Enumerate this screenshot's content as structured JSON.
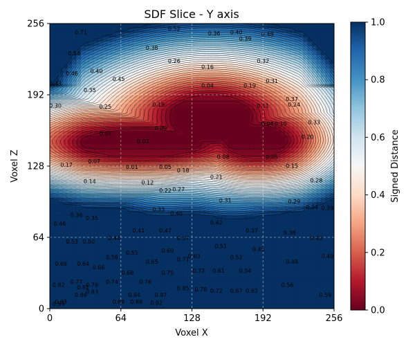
{
  "chart_data": {
    "type": "heatmap",
    "title": "SDF Slice - Y axis",
    "xlabel": "Voxel X",
    "ylabel": "Voxel Z",
    "xlim": [
      0,
      256
    ],
    "ylim": [
      0,
      256
    ],
    "xticks": [
      "0",
      "64",
      "128",
      "192",
      "256"
    ],
    "yticks": [
      "0",
      "64",
      "128",
      "192",
      "256"
    ],
    "xtick_values": [
      0,
      64,
      128,
      192,
      256
    ],
    "ytick_values": [
      0,
      64,
      128,
      192,
      256
    ],
    "colormap": "RdBu",
    "colors": {
      "low": "#67001f",
      "mid": "#f7f7f7",
      "high": "#053061"
    },
    "colorbar": {
      "label": "Signed Distance",
      "range": [
        0.0,
        1.0
      ],
      "ticks": [
        "0.0",
        "0.2",
        "0.4",
        "0.6",
        "0.8",
        "1.0"
      ],
      "tick_values": [
        0.0,
        0.2,
        0.4,
        0.6,
        0.8,
        1.0
      ]
    },
    "grid": true,
    "contour_labels": [
      {
        "x": 28,
        "z": 248,
        "v": "0.71"
      },
      {
        "x": 148,
        "z": 247,
        "v": "0.36"
      },
      {
        "x": 112,
        "z": 251,
        "v": "0.52"
      },
      {
        "x": 168,
        "z": 248,
        "v": "0.40"
      },
      {
        "x": 176,
        "z": 242,
        "v": "0.39"
      },
      {
        "x": 196,
        "z": 246,
        "v": "0.48"
      },
      {
        "x": 22,
        "z": 229,
        "v": "0.58"
      },
      {
        "x": 92,
        "z": 234,
        "v": "0.38"
      },
      {
        "x": 112,
        "z": 222,
        "v": "0.26"
      },
      {
        "x": 142,
        "z": 217,
        "v": "0.16"
      },
      {
        "x": 192,
        "z": 222,
        "v": "0.32"
      },
      {
        "x": 20,
        "z": 211,
        "v": "0.46"
      },
      {
        "x": 42,
        "z": 213,
        "v": "0.40"
      },
      {
        "x": 62,
        "z": 206,
        "v": "0.45"
      },
      {
        "x": 5,
        "z": 202,
        "v": "0.43"
      },
      {
        "x": 36,
        "z": 196,
        "v": "0.35"
      },
      {
        "x": 142,
        "z": 200,
        "v": "0.04"
      },
      {
        "x": 180,
        "z": 200,
        "v": "0.19"
      },
      {
        "x": 200,
        "z": 204,
        "v": "0.31"
      },
      {
        "x": 218,
        "z": 188,
        "v": "0.37"
      },
      {
        "x": 50,
        "z": 181,
        "v": "0.25"
      },
      {
        "x": 98,
        "z": 183,
        "v": "0.19"
      },
      {
        "x": 192,
        "z": 182,
        "v": "0.11"
      },
      {
        "x": 220,
        "z": 183,
        "v": "0.24"
      },
      {
        "x": 5,
        "z": 182,
        "v": "0.30"
      },
      {
        "x": 100,
        "z": 162,
        "v": "0.09"
      },
      {
        "x": 196,
        "z": 166,
        "v": "0.04"
      },
      {
        "x": 208,
        "z": 166,
        "v": "0.10"
      },
      {
        "x": 238,
        "z": 167,
        "v": "0.33"
      },
      {
        "x": 50,
        "z": 157,
        "v": "0.07"
      },
      {
        "x": 84,
        "z": 150,
        "v": "0.02"
      },
      {
        "x": 232,
        "z": 154,
        "v": "0.20"
      },
      {
        "x": 156,
        "z": 136,
        "v": "0.08"
      },
      {
        "x": 200,
        "z": 136,
        "v": "0.05"
      },
      {
        "x": 40,
        "z": 132,
        "v": "0.07"
      },
      {
        "x": 74,
        "z": 127,
        "v": "0.01"
      },
      {
        "x": 104,
        "z": 127,
        "v": "0.05"
      },
      {
        "x": 120,
        "z": 124,
        "v": "0.18"
      },
      {
        "x": 218,
        "z": 128,
        "v": "0.15"
      },
      {
        "x": 15,
        "z": 129,
        "v": "0.17"
      },
      {
        "x": 36,
        "z": 114,
        "v": "0.14"
      },
      {
        "x": 88,
        "z": 113,
        "v": "0.12"
      },
      {
        "x": 150,
        "z": 118,
        "v": "0.21"
      },
      {
        "x": 104,
        "z": 106,
        "v": "0.22"
      },
      {
        "x": 116,
        "z": 107,
        "v": "0.27"
      },
      {
        "x": 240,
        "z": 115,
        "v": "0.28"
      },
      {
        "x": 158,
        "z": 97,
        "v": "0.31"
      },
      {
        "x": 220,
        "z": 96,
        "v": "0.29"
      },
      {
        "x": 236,
        "z": 91,
        "v": "0.34"
      },
      {
        "x": 98,
        "z": 89,
        "v": "0.33"
      },
      {
        "x": 114,
        "z": 85,
        "v": "0.40"
      },
      {
        "x": 250,
        "z": 90,
        "v": "0.39"
      },
      {
        "x": 24,
        "z": 84,
        "v": "0.36"
      },
      {
        "x": 38,
        "z": 81,
        "v": "0.35"
      },
      {
        "x": 9,
        "z": 76,
        "v": "0.46"
      },
      {
        "x": 150,
        "z": 77,
        "v": "0.42"
      },
      {
        "x": 80,
        "z": 70,
        "v": "0.41"
      },
      {
        "x": 104,
        "z": 70,
        "v": "0.47"
      },
      {
        "x": 182,
        "z": 70,
        "v": "0.37"
      },
      {
        "x": 216,
        "z": 68,
        "v": "0.38"
      },
      {
        "x": 240,
        "z": 63,
        "v": "0.43"
      },
      {
        "x": 58,
        "z": 63,
        "v": "0.44"
      },
      {
        "x": 120,
        "z": 63,
        "v": "0.57"
      },
      {
        "x": 20,
        "z": 60,
        "v": "0.53"
      },
      {
        "x": 35,
        "z": 60,
        "v": "0.50"
      },
      {
        "x": 154,
        "z": 56,
        "v": "0.51"
      },
      {
        "x": 188,
        "z": 53,
        "v": "0.45"
      },
      {
        "x": 106,
        "z": 52,
        "v": "0.60"
      },
      {
        "x": 74,
        "z": 50,
        "v": "0.55"
      },
      {
        "x": 56,
        "z": 46,
        "v": "0.58"
      },
      {
        "x": 168,
        "z": 46,
        "v": "0.52"
      },
      {
        "x": 250,
        "z": 47,
        "v": "0.49"
      },
      {
        "x": 130,
        "z": 47,
        "v": "0.63"
      },
      {
        "x": 120,
        "z": 44,
        "v": "0.71"
      },
      {
        "x": 92,
        "z": 42,
        "v": "0.65"
      },
      {
        "x": 218,
        "z": 42,
        "v": "0.48"
      },
      {
        "x": 10,
        "z": 40,
        "v": "0.69"
      },
      {
        "x": 30,
        "z": 40,
        "v": "0.64"
      },
      {
        "x": 44,
        "z": 37,
        "v": "0.66"
      },
      {
        "x": 70,
        "z": 32,
        "v": "0.68"
      },
      {
        "x": 134,
        "z": 34,
        "v": "0.73"
      },
      {
        "x": 152,
        "z": 34,
        "v": "0.61"
      },
      {
        "x": 176,
        "z": 34,
        "v": "0.54"
      },
      {
        "x": 106,
        "z": 32,
        "v": "0.75"
      },
      {
        "x": 24,
        "z": 24,
        "v": "0.77"
      },
      {
        "x": 38,
        "z": 21,
        "v": "0.79"
      },
      {
        "x": 56,
        "z": 24,
        "v": "0.74"
      },
      {
        "x": 86,
        "z": 24,
        "v": "0.76"
      },
      {
        "x": 214,
        "z": 21,
        "v": "0.56"
      },
      {
        "x": 8,
        "z": 21,
        "v": "0.82"
      },
      {
        "x": 30,
        "z": 19,
        "v": "0.81"
      },
      {
        "x": 38,
        "z": 15,
        "v": "0.83"
      },
      {
        "x": 120,
        "z": 18,
        "v": "0.85"
      },
      {
        "x": 136,
        "z": 17,
        "v": "0.78"
      },
      {
        "x": 150,
        "z": 16,
        "v": "0.72"
      },
      {
        "x": 168,
        "z": 16,
        "v": "0.67"
      },
      {
        "x": 182,
        "z": 16,
        "v": "0.62"
      },
      {
        "x": 28,
        "z": 12,
        "v": "0.86"
      },
      {
        "x": 76,
        "z": 12,
        "v": "0.84"
      },
      {
        "x": 100,
        "z": 12,
        "v": "0.87"
      },
      {
        "x": 248,
        "z": 12,
        "v": "0.59"
      },
      {
        "x": 10,
        "z": 6,
        "v": "0.93"
      },
      {
        "x": 62,
        "z": 6,
        "v": "0.88"
      },
      {
        "x": 78,
        "z": 6,
        "v": "0.89"
      },
      {
        "x": 96,
        "z": 5,
        "v": "0.92"
      },
      {
        "x": 8,
        "z": 4,
        "v": "0.94"
      }
    ]
  }
}
